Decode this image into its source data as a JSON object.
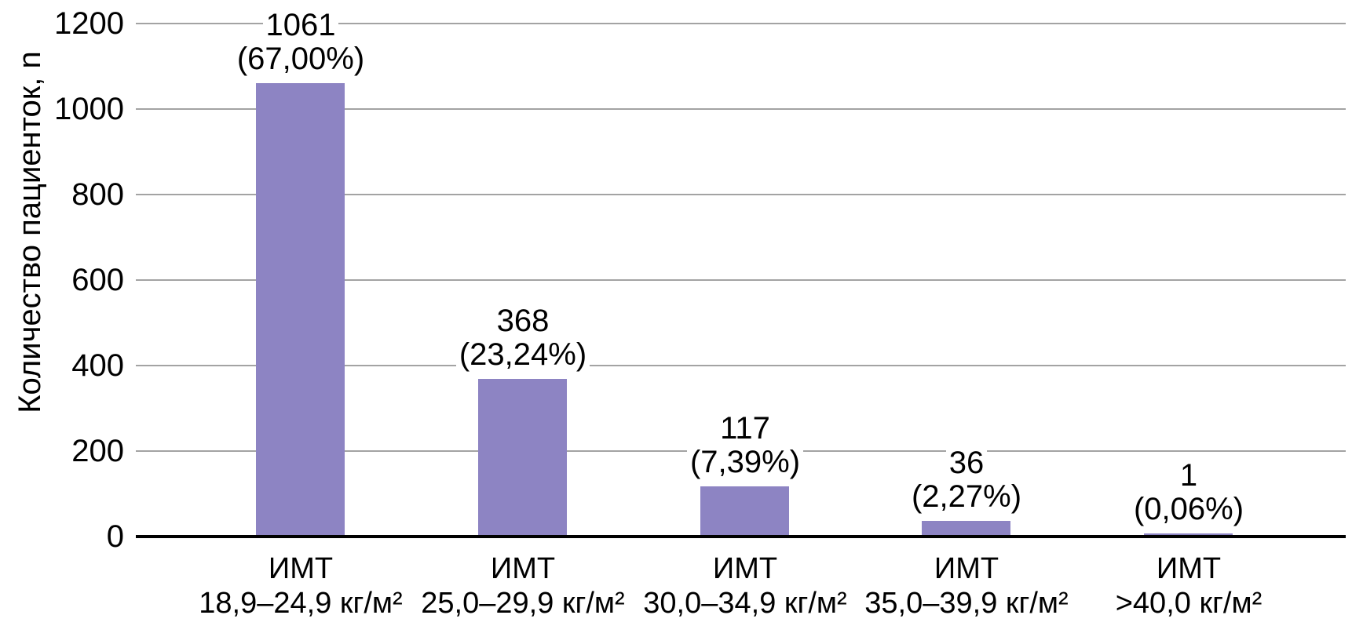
{
  "chart_data": {
    "type": "bar",
    "title": "",
    "ylabel": "Количество пациенток, n",
    "xlabel": "",
    "categories": [
      {
        "line1": "ИМТ",
        "line2": "18,9–24,9 кг/м²"
      },
      {
        "line1": "ИМТ",
        "line2": "25,0–29,9 кг/м²"
      },
      {
        "line1": "ИМТ",
        "line2": "30,0–34,9 кг/м²"
      },
      {
        "line1": "ИМТ",
        "line2": "35,0–39,9 кг/м²"
      },
      {
        "line1": "ИМТ",
        "line2": ">40,0 кг/м²"
      }
    ],
    "values": [
      1061,
      368,
      117,
      36,
      1
    ],
    "value_labels": [
      [
        "1061",
        "(67,00%)"
      ],
      [
        "368",
        "(23,24%)"
      ],
      [
        "117",
        "(7,39%)"
      ],
      [
        "36",
        "(2,27%)"
      ],
      [
        "1",
        "(0,06%)"
      ]
    ],
    "yticks": [
      0,
      200,
      400,
      600,
      800,
      1000,
      1200
    ],
    "ylim": [
      0,
      1200
    ],
    "grid": true,
    "legend": "none",
    "bar_color": "#8d84c3",
    "gridline_color": "#a3a3a3",
    "axis_line_color": "#000000",
    "text_color": "#000000"
  }
}
